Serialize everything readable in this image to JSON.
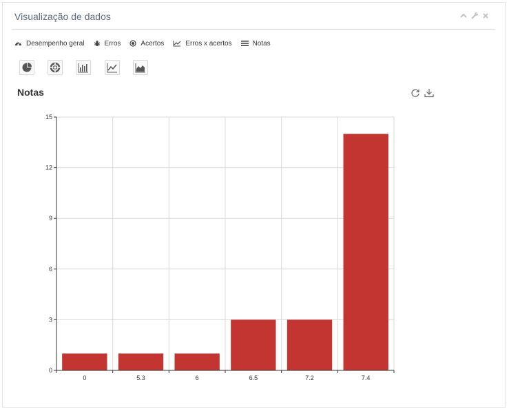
{
  "widget": {
    "title": "Visualização de dados",
    "controls": [
      "chevron-up-icon",
      "wrench-icon",
      "close-icon"
    ]
  },
  "tabs": [
    {
      "label": "Desempenho geral",
      "icon": "dashboard-icon"
    },
    {
      "label": "Erros",
      "icon": "bug-icon"
    },
    {
      "label": "Acertos",
      "icon": "target-icon"
    },
    {
      "label": "Erros x acertos",
      "icon": "line-chart-icon"
    },
    {
      "label": "Notas",
      "icon": "list-icon"
    }
  ],
  "chart_types": [
    "pie-chart-icon",
    "donut-chart-icon",
    "bar-chart-icon",
    "line-chart-icon",
    "area-chart-icon"
  ],
  "chart_tools": [
    "refresh-icon",
    "download-icon"
  ],
  "colors": {
    "bar": "#c23531",
    "grid": "#d9d9d9",
    "axis": "#333333"
  },
  "chart_data": {
    "type": "bar",
    "title": "Notas",
    "categories": [
      "0",
      "5.3",
      "6",
      "6.5",
      "7.2",
      "7.4"
    ],
    "values": [
      1,
      1,
      1,
      3,
      3,
      14
    ],
    "ylim": [
      0,
      15
    ],
    "yticks": [
      0,
      3,
      6,
      9,
      12,
      15
    ],
    "grid": true,
    "legend": "none"
  }
}
